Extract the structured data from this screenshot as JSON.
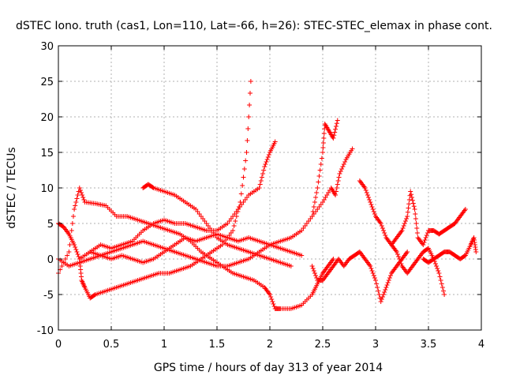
{
  "chart_data": {
    "type": "scatter",
    "title": "dSTEC Iono. truth (cas1, Lon=110, Lat=-66, h=26): STEC-STEC_elemax in phase cont.",
    "xlabel": "GPS time / hours of day 313 of year 2014",
    "ylabel": "dSTEC  / TECUs",
    "xlim": [
      0,
      4
    ],
    "ylim": [
      -10,
      30
    ],
    "x_ticks": [
      0,
      0.5,
      1,
      1.5,
      2,
      2.5,
      3,
      3.5,
      4
    ],
    "x_tick_labels": [
      "0",
      "0.5",
      "1",
      "1.5",
      "2",
      "2.5",
      "3",
      "3.5",
      "4"
    ],
    "y_ticks": [
      -10,
      -5,
      0,
      5,
      10,
      15,
      20,
      25,
      30
    ],
    "y_tick_labels": [
      "-10",
      "-5",
      "0",
      "5",
      "10",
      "15",
      "20",
      "25",
      "30"
    ],
    "grid": true,
    "marker": "+",
    "color": "#ff0000",
    "series": [
      {
        "name": "s1",
        "points": [
          [
            0.0,
            5
          ],
          [
            0.05,
            4.5
          ],
          [
            0.1,
            3.5
          ],
          [
            0.15,
            2
          ],
          [
            0.2,
            0
          ],
          [
            0.22,
            -3
          ],
          [
            0.25,
            -4
          ],
          [
            0.3,
            -5.5
          ],
          [
            0.35,
            -5
          ],
          [
            0.45,
            -4.5
          ],
          [
            0.55,
            -4
          ],
          [
            0.65,
            -3.5
          ],
          [
            0.75,
            -3
          ],
          [
            0.85,
            -2.5
          ],
          [
            0.95,
            -2
          ],
          [
            1.05,
            -2
          ],
          [
            1.15,
            -1.5
          ],
          [
            1.25,
            -1
          ],
          [
            1.35,
            0
          ],
          [
            1.45,
            1
          ],
          [
            1.55,
            2
          ],
          [
            1.65,
            4
          ],
          [
            1.72,
            8
          ],
          [
            1.78,
            15
          ],
          [
            1.82,
            25
          ]
        ]
      },
      {
        "name": "s2",
        "points": [
          [
            0.0,
            -2
          ],
          [
            0.1,
            1
          ],
          [
            0.15,
            7
          ],
          [
            0.2,
            10
          ],
          [
            0.25,
            8
          ],
          [
            0.35,
            7.8
          ],
          [
            0.45,
            7.5
          ],
          [
            0.55,
            6
          ],
          [
            0.65,
            6
          ],
          [
            0.75,
            5.5
          ],
          [
            0.85,
            5
          ],
          [
            0.95,
            4.5
          ],
          [
            1.05,
            4
          ],
          [
            1.15,
            3.5
          ],
          [
            1.25,
            2.5
          ],
          [
            1.35,
            1
          ],
          [
            1.45,
            0
          ],
          [
            1.55,
            -1
          ],
          [
            1.65,
            -2
          ],
          [
            1.75,
            -2.5
          ],
          [
            1.85,
            -3
          ],
          [
            1.95,
            -4
          ],
          [
            2.0,
            -5
          ],
          [
            2.05,
            -7
          ],
          [
            2.1,
            -7
          ],
          [
            2.2,
            -7
          ],
          [
            2.3,
            -6.5
          ],
          [
            2.4,
            -5
          ],
          [
            2.45,
            -3.5
          ],
          [
            2.5,
            -2
          ],
          [
            2.55,
            -1
          ],
          [
            2.6,
            0
          ]
        ]
      },
      {
        "name": "s3",
        "points": [
          [
            0.0,
            0
          ],
          [
            0.1,
            -1
          ],
          [
            0.2,
            -0.5
          ],
          [
            0.3,
            0
          ],
          [
            0.4,
            0.5
          ],
          [
            0.5,
            1
          ],
          [
            0.6,
            1.5
          ],
          [
            0.7,
            2
          ],
          [
            0.8,
            2.5
          ],
          [
            0.9,
            2
          ],
          [
            1.0,
            1.5
          ],
          [
            1.1,
            1
          ],
          [
            1.2,
            0.5
          ],
          [
            1.3,
            0
          ],
          [
            1.4,
            -0.5
          ],
          [
            1.5,
            -1
          ],
          [
            1.6,
            -1
          ],
          [
            1.7,
            -0.5
          ],
          [
            1.8,
            0
          ],
          [
            1.9,
            1
          ],
          [
            2.0,
            2
          ],
          [
            2.1,
            2.5
          ],
          [
            2.2,
            3
          ],
          [
            2.3,
            4
          ],
          [
            2.4,
            6
          ],
          [
            2.5,
            8
          ],
          [
            2.58,
            10
          ],
          [
            2.62,
            9
          ],
          [
            2.66,
            12
          ],
          [
            2.72,
            14
          ],
          [
            2.78,
            15.5
          ]
        ]
      },
      {
        "name": "s4",
        "points": [
          [
            0.8,
            10
          ],
          [
            0.85,
            10.5
          ],
          [
            0.9,
            10
          ],
          [
            1.0,
            9.5
          ],
          [
            1.1,
            9
          ],
          [
            1.2,
            8
          ],
          [
            1.3,
            7
          ],
          [
            1.4,
            5
          ],
          [
            1.5,
            3
          ],
          [
            1.6,
            2
          ],
          [
            1.7,
            1.5
          ],
          [
            1.8,
            1
          ],
          [
            1.9,
            0.5
          ],
          [
            2.0,
            0
          ],
          [
            2.1,
            -0.5
          ],
          [
            2.2,
            -1
          ]
        ]
      },
      {
        "name": "s5",
        "points": [
          [
            0.3,
            1
          ],
          [
            0.4,
            2
          ],
          [
            0.5,
            1.5
          ],
          [
            0.6,
            2
          ],
          [
            0.7,
            2.5
          ],
          [
            0.8,
            4
          ],
          [
            0.9,
            5
          ],
          [
            1.0,
            5.5
          ],
          [
            1.1,
            5
          ],
          [
            1.2,
            5
          ],
          [
            1.3,
            4.5
          ],
          [
            1.4,
            4
          ],
          [
            1.5,
            4
          ],
          [
            1.6,
            5
          ],
          [
            1.7,
            7
          ],
          [
            1.8,
            9
          ],
          [
            1.9,
            10
          ],
          [
            1.95,
            13
          ],
          [
            2.0,
            15
          ],
          [
            2.05,
            16.5
          ]
        ]
      },
      {
        "name": "s6",
        "points": [
          [
            2.4,
            -1
          ],
          [
            2.45,
            -3
          ],
          [
            2.5,
            -3
          ],
          [
            2.55,
            -2
          ],
          [
            2.6,
            -1
          ],
          [
            2.65,
            0
          ],
          [
            2.7,
            -1
          ],
          [
            2.75,
            0
          ],
          [
            2.8,
            0.5
          ],
          [
            2.85,
            1
          ],
          [
            2.9,
            0
          ],
          [
            2.95,
            -1
          ],
          [
            3.0,
            -3
          ],
          [
            3.05,
            -6
          ],
          [
            3.1,
            -4
          ],
          [
            3.15,
            -2
          ],
          [
            3.2,
            -1
          ],
          [
            3.25,
            0
          ],
          [
            3.3,
            1
          ]
        ]
      },
      {
        "name": "s7",
        "points": [
          [
            2.4,
            6
          ],
          [
            2.45,
            10
          ],
          [
            2.5,
            15
          ],
          [
            2.52,
            19
          ],
          [
            2.56,
            18
          ],
          [
            2.6,
            17
          ],
          [
            2.64,
            19.5
          ]
        ]
      },
      {
        "name": "s8",
        "points": [
          [
            2.85,
            11
          ],
          [
            2.9,
            10
          ],
          [
            2.95,
            8
          ],
          [
            3.0,
            6
          ],
          [
            3.05,
            5
          ],
          [
            3.1,
            3
          ],
          [
            3.15,
            2
          ],
          [
            3.2,
            1
          ],
          [
            3.25,
            -1
          ],
          [
            3.3,
            -2
          ],
          [
            3.35,
            -1
          ],
          [
            3.4,
            0
          ],
          [
            3.45,
            1
          ],
          [
            3.5,
            1.5
          ],
          [
            3.55,
            0
          ],
          [
            3.6,
            -2
          ],
          [
            3.65,
            -5
          ]
        ]
      },
      {
        "name": "s9",
        "points": [
          [
            3.15,
            2
          ],
          [
            3.2,
            3
          ],
          [
            3.25,
            4
          ],
          [
            3.3,
            6
          ],
          [
            3.33,
            9.5
          ],
          [
            3.37,
            7
          ],
          [
            3.4,
            3
          ],
          [
            3.45,
            2
          ],
          [
            3.5,
            4
          ],
          [
            3.55,
            4
          ],
          [
            3.6,
            3.5
          ],
          [
            3.65,
            4
          ],
          [
            3.7,
            4.5
          ],
          [
            3.75,
            5
          ],
          [
            3.8,
            6
          ],
          [
            3.85,
            7
          ]
        ]
      },
      {
        "name": "s10",
        "points": [
          [
            3.45,
            0
          ],
          [
            3.5,
            -0.5
          ],
          [
            3.55,
            0
          ],
          [
            3.6,
            0.5
          ],
          [
            3.65,
            1
          ],
          [
            3.7,
            1
          ],
          [
            3.75,
            0.5
          ],
          [
            3.8,
            0
          ],
          [
            3.85,
            0.5
          ],
          [
            3.9,
            2
          ],
          [
            3.93,
            3
          ],
          [
            3.95,
            1
          ]
        ]
      },
      {
        "name": "s11",
        "points": [
          [
            0.2,
            0
          ],
          [
            0.3,
            1
          ],
          [
            0.4,
            0.5
          ],
          [
            0.5,
            0
          ],
          [
            0.6,
            0.5
          ],
          [
            0.7,
            0
          ],
          [
            0.8,
            -0.5
          ],
          [
            0.9,
            0
          ],
          [
            1.0,
            1
          ],
          [
            1.1,
            2
          ],
          [
            1.2,
            3
          ],
          [
            1.3,
            2.5
          ],
          [
            1.4,
            3
          ],
          [
            1.5,
            3.5
          ],
          [
            1.6,
            3
          ],
          [
            1.7,
            2.5
          ],
          [
            1.8,
            3
          ],
          [
            1.9,
            2.5
          ],
          [
            2.0,
            2
          ],
          [
            2.1,
            1.5
          ],
          [
            2.2,
            1
          ],
          [
            2.3,
            0.5
          ]
        ]
      }
    ]
  }
}
